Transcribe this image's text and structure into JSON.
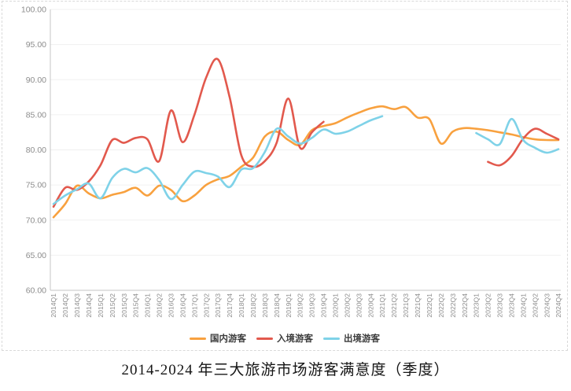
{
  "page": {
    "title": "2014-2024 年三大旅游市场游客满意度（季度）"
  },
  "legend": {
    "items": [
      "国内游客",
      "入境游客",
      "出境游客"
    ]
  },
  "chart_data": {
    "type": "line",
    "smooth": true,
    "grid": true,
    "legend_position": "bottom",
    "title": "2014-2024 年三大旅游市场游客满意度（季度）",
    "xlabel": "",
    "ylabel": "",
    "ylim": [
      60,
      100
    ],
    "y_axis": {
      "min": 60,
      "max": 100,
      "step": 5,
      "tick_labels": [
        "100.00",
        "95.00",
        "90.00",
        "85.00",
        "80.00",
        "75.00",
        "70.00",
        "65.00",
        "60.00"
      ]
    },
    "categories": [
      "2014Q1",
      "2014Q2",
      "2014Q3",
      "2014Q4",
      "2015Q1",
      "2015Q2",
      "2015Q3",
      "2015Q4",
      "2016Q1",
      "2016Q2",
      "2016Q3",
      "2016Q4",
      "2017Q1",
      "2017Q2",
      "2017Q3",
      "2017Q4",
      "2018Q1",
      "2018Q2",
      "2018Q3",
      "2018Q4",
      "2019Q1",
      "2019Q2",
      "2019Q3",
      "2019Q4",
      "2020Q1",
      "2020Q2",
      "2020Q3",
      "2020Q4",
      "2021Q1",
      "2021Q2",
      "2021Q3",
      "2021Q4",
      "2022Q1",
      "2022Q2",
      "2022Q3",
      "2022Q4",
      "2023Q1",
      "2023Q2",
      "2023Q3",
      "2023Q4",
      "2024Q1",
      "2024Q2",
      "2024Q3",
      "2024Q4"
    ],
    "series": [
      {
        "name": "国内游客",
        "key": "domestic",
        "color": "#F8A13F",
        "values": [
          70.4,
          72.3,
          74.9,
          73.8,
          73.1,
          73.6,
          74.0,
          74.6,
          73.5,
          74.9,
          74.3,
          72.7,
          73.5,
          75.0,
          75.8,
          76.3,
          77.6,
          78.9,
          81.9,
          82.6,
          81.4,
          80.7,
          82.8,
          83.4,
          83.8,
          84.6,
          85.3,
          85.9,
          86.2,
          85.8,
          86.1,
          84.6,
          84.4,
          80.9,
          82.6,
          83.1,
          83.0,
          82.8,
          82.5,
          82.2,
          81.8,
          81.5,
          81.4,
          81.4
        ]
      },
      {
        "name": "入境游客",
        "key": "inbound",
        "color": "#E2594D",
        "values": [
          71.9,
          74.6,
          74.3,
          75.5,
          77.8,
          81.4,
          81.0,
          81.7,
          81.5,
          78.4,
          85.6,
          81.1,
          85.0,
          90.3,
          92.9,
          87.5,
          79.2,
          77.6,
          78.4,
          81.0,
          87.3,
          80.3,
          82.5,
          84.0,
          null,
          null,
          null,
          null,
          null,
          null,
          null,
          null,
          null,
          null,
          null,
          null,
          null,
          78.3,
          77.8,
          79.1,
          81.6,
          83.0,
          82.3,
          81.5
        ]
      },
      {
        "name": "出境游客",
        "key": "outbound",
        "color": "#7FD2E8",
        "values": [
          72.3,
          73.5,
          74.4,
          75.2,
          73.1,
          76.0,
          77.3,
          76.8,
          77.4,
          75.7,
          73.0,
          75.0,
          76.9,
          76.7,
          76.2,
          74.7,
          77.2,
          77.4,
          79.7,
          83.0,
          81.9,
          80.9,
          81.7,
          82.9,
          82.3,
          82.6,
          83.4,
          84.2,
          84.8,
          null,
          null,
          null,
          null,
          null,
          null,
          null,
          82.4,
          81.5,
          80.8,
          84.4,
          81.4,
          80.3,
          79.6,
          80.1
        ]
      }
    ]
  },
  "style_colors": {
    "grid_line": "#f0f0f0",
    "axis_line": "#c6c6c6",
    "tick_text": "#8c8c8c",
    "frame_border": "#d9d9d9",
    "title_text": "#151515"
  }
}
